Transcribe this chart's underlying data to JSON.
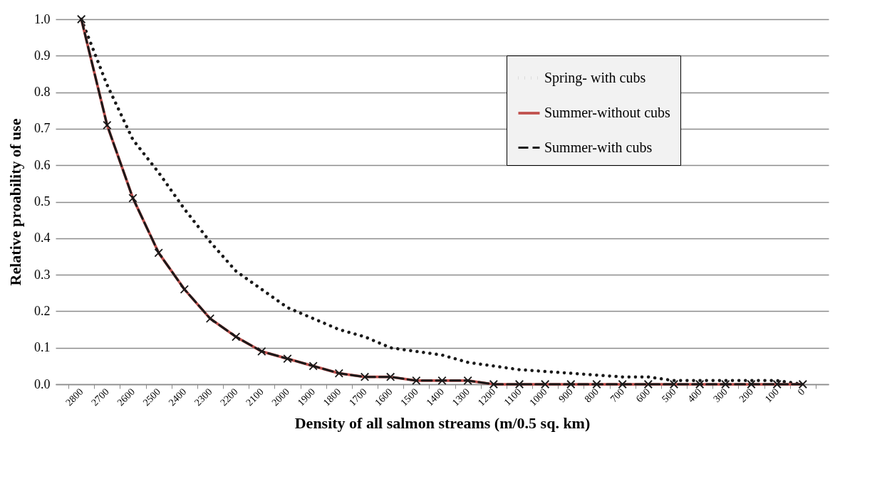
{
  "chart_data": {
    "type": "line",
    "xlabel": "Density of all salmon streams (m/0.5 sq. km)",
    "ylabel": "Relative proability of use",
    "categories": [
      "2800",
      "2700",
      "2600",
      "2500",
      "2400",
      "2300",
      "2200",
      "2100",
      "2000",
      "1900",
      "1800",
      "1700",
      "1600",
      "1500",
      "1400",
      "1300",
      "1200",
      "1100",
      "1000",
      "900",
      "800",
      "700",
      "600",
      "500",
      "400",
      "300",
      "200",
      "100",
      "0"
    ],
    "series": [
      {
        "name": "Spring- with cubs",
        "color": "#1a1a1a",
        "line_style": "dotted",
        "marker": "none",
        "values": [
          1.0,
          0.82,
          0.67,
          0.58,
          0.48,
          0.39,
          0.31,
          0.26,
          0.21,
          0.18,
          0.15,
          0.13,
          0.1,
          0.09,
          0.08,
          0.06,
          0.05,
          0.04,
          0.035,
          0.03,
          0.025,
          0.02,
          0.02,
          0.01,
          0.01,
          0.01,
          0.01,
          0.01,
          0.0
        ]
      },
      {
        "name": "Summer-without cubs",
        "color": "#c0504d",
        "line_style": "solid",
        "marker": "none",
        "values": [
          1.0,
          0.71,
          0.51,
          0.36,
          0.26,
          0.18,
          0.13,
          0.09,
          0.07,
          0.05,
          0.03,
          0.02,
          0.02,
          0.01,
          0.01,
          0.01,
          0.0,
          0.0,
          0.0,
          0.0,
          0.0,
          0.0,
          0.0,
          0.0,
          0.0,
          0.0,
          0.0,
          0.0,
          0.0
        ]
      },
      {
        "name": "Summer-with cubs",
        "color": "#1a1a1a",
        "line_style": "dashed",
        "marker": "cross",
        "values": [
          1.0,
          0.71,
          0.51,
          0.36,
          0.26,
          0.18,
          0.13,
          0.09,
          0.07,
          0.05,
          0.03,
          0.02,
          0.02,
          0.01,
          0.01,
          0.01,
          0.0,
          0.0,
          0.0,
          0.0,
          0.0,
          0.0,
          0.0,
          0.0,
          0.0,
          0.0,
          0.0,
          0.0,
          0.0
        ]
      }
    ],
    "ylim": [
      0,
      1
    ],
    "yticks": [
      {
        "value": 0,
        "label": "0.0"
      },
      {
        "value": 0.1,
        "label": "0.1"
      },
      {
        "value": 0.2,
        "label": "0.2"
      },
      {
        "value": 0.3,
        "label": "0.3"
      },
      {
        "value": 0.4,
        "label": "0.4"
      },
      {
        "value": 0.5,
        "label": "0.5"
      },
      {
        "value": 0.6,
        "label": "0.6"
      },
      {
        "value": 0.7,
        "label": "0.7"
      },
      {
        "value": 0.8,
        "label": "0.8"
      },
      {
        "value": 0.9,
        "label": "0.9"
      },
      {
        "value": 1,
        "label": "1.0"
      }
    ],
    "grid": "y",
    "legend": "top right"
  }
}
